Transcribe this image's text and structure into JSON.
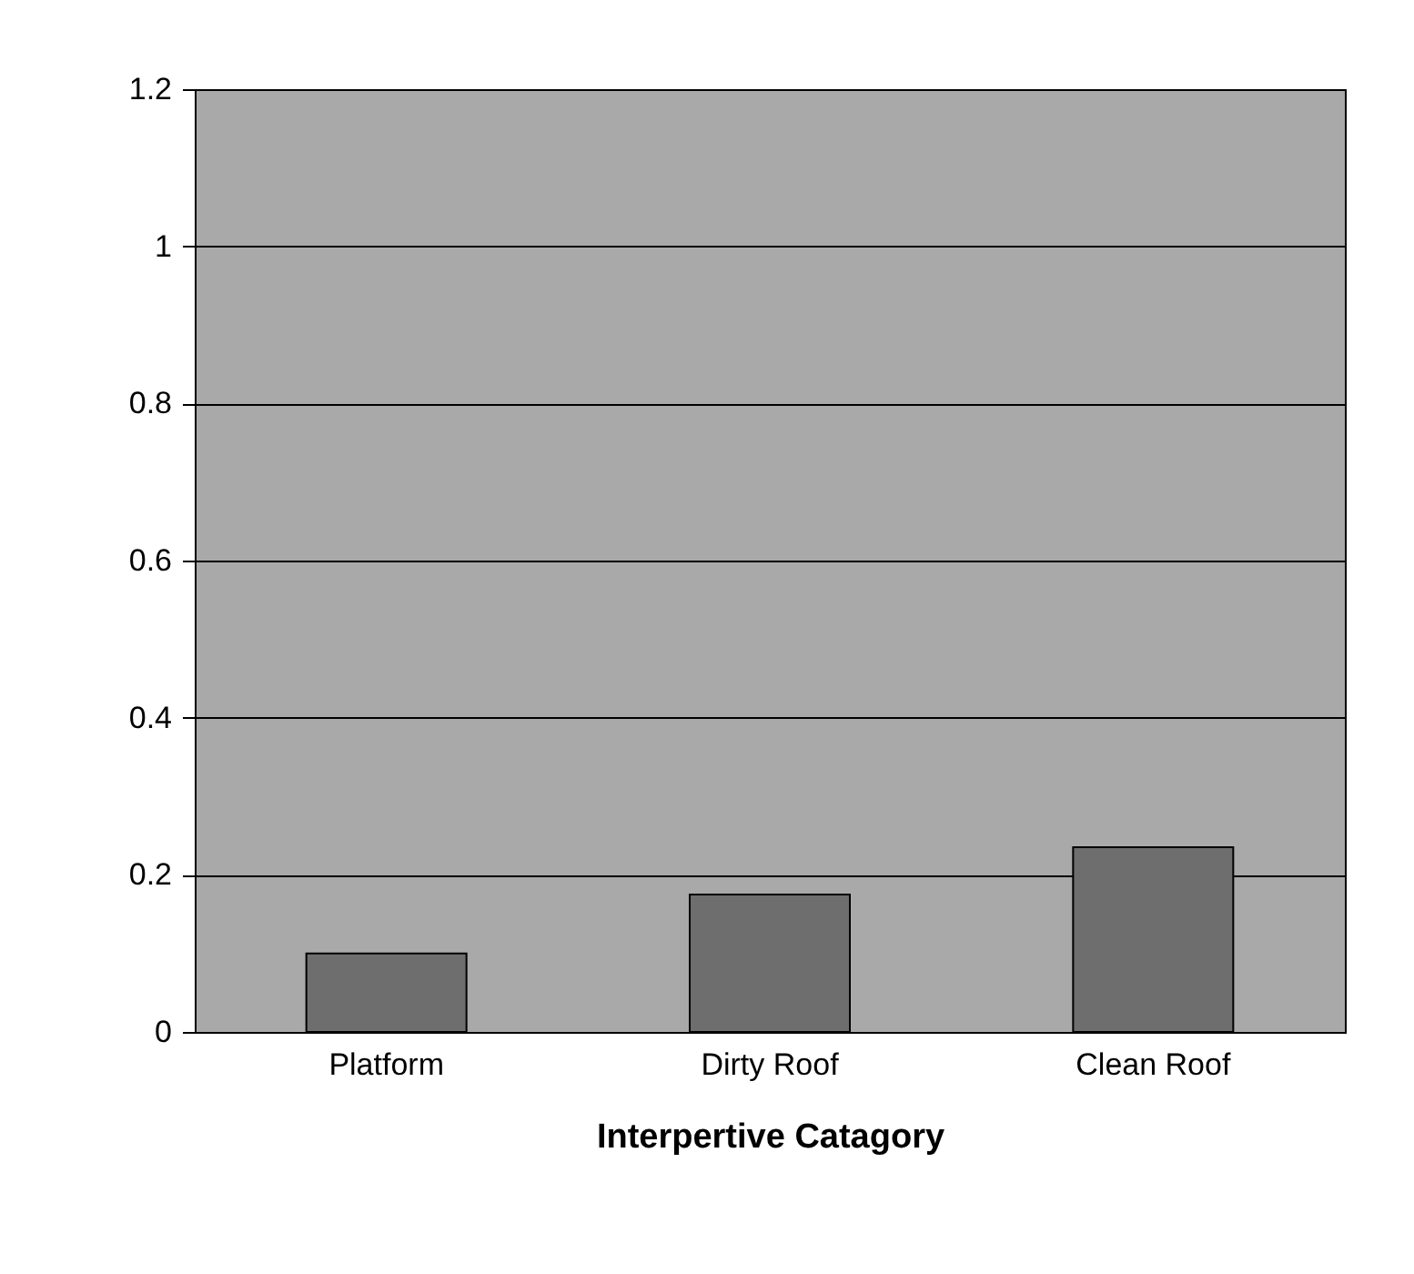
{
  "chart_data": {
    "type": "bar",
    "xlabel": "Interpertive Catagory",
    "categories": [
      "Platform",
      "Dirty Roof",
      "Clean Roof"
    ],
    "values": [
      0.1,
      0.175,
      0.235
    ],
    "color": "#6e6e6e",
    "ylim": [
      0,
      1.2
    ],
    "yticks": [
      0,
      0.2,
      0.4,
      0.6,
      0.8,
      1,
      1.2
    ],
    "grid": "y"
  }
}
